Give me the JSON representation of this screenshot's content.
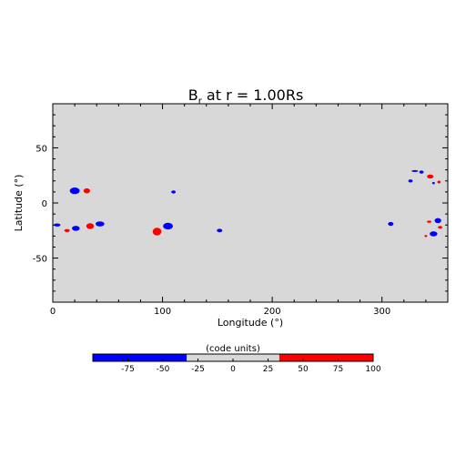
{
  "chart_data": {
    "type": "heatmap",
    "title_main": "B",
    "title_sub": "r",
    "title_rest": " at r = 1.00Rs",
    "xlabel": "Longitude (°)",
    "ylabel": "Latitude (°)",
    "xlim": [
      0,
      360
    ],
    "ylim": [
      -90,
      90
    ],
    "xticks": [
      0,
      100,
      200,
      300
    ],
    "yticks": [
      -50,
      0,
      50
    ],
    "background_color": "#d8d8d8",
    "spots": [
      {
        "lon": 4,
        "lat": -20,
        "rlon": 3,
        "rlat": 1.4,
        "sign": "neg"
      },
      {
        "lon": 13,
        "lat": -25,
        "rlon": 2.5,
        "rlat": 1.4,
        "sign": "pos"
      },
      {
        "lon": 20,
        "lat": 11,
        "rlon": 4.5,
        "rlat": 3,
        "sign": "neg"
      },
      {
        "lon": 31,
        "lat": 11,
        "rlon": 3,
        "rlat": 2.3,
        "sign": "pos"
      },
      {
        "lon": 21,
        "lat": -23,
        "rlon": 3.5,
        "rlat": 2.3,
        "sign": "neg"
      },
      {
        "lon": 34,
        "lat": -21,
        "rlon": 3.5,
        "rlat": 2.6,
        "sign": "pos"
      },
      {
        "lon": 43,
        "lat": -19,
        "rlon": 4,
        "rlat": 2.3,
        "sign": "neg"
      },
      {
        "lon": 95,
        "lat": -26,
        "rlon": 4,
        "rlat": 3.5,
        "sign": "pos"
      },
      {
        "lon": 105,
        "lat": -21,
        "rlon": 4.5,
        "rlat": 3,
        "sign": "neg"
      },
      {
        "lon": 110,
        "lat": 10,
        "rlon": 2,
        "rlat": 1.4,
        "sign": "neg"
      },
      {
        "lon": 152,
        "lat": -25,
        "rlon": 2.5,
        "rlat": 1.6,
        "sign": "neg"
      },
      {
        "lon": 308,
        "lat": -19,
        "rlon": 2.5,
        "rlat": 1.8,
        "sign": "neg"
      },
      {
        "lon": 326,
        "lat": 20,
        "rlon": 2,
        "rlat": 1.4,
        "sign": "neg"
      },
      {
        "lon": 330,
        "lat": 29,
        "rlon": 3,
        "rlat": 0.8,
        "sign": "neg"
      },
      {
        "lon": 336,
        "lat": 28,
        "rlon": 2,
        "rlat": 1.4,
        "sign": "neg"
      },
      {
        "lon": 344,
        "lat": 24,
        "rlon": 3,
        "rlat": 1.8,
        "sign": "pos"
      },
      {
        "lon": 347,
        "lat": 18,
        "rlon": 1.2,
        "rlat": 1,
        "sign": "neg"
      },
      {
        "lon": 352,
        "lat": 19,
        "rlon": 1.5,
        "rlat": 1.2,
        "sign": "pos"
      },
      {
        "lon": 343,
        "lat": -17,
        "rlon": 2,
        "rlat": 1,
        "sign": "pos"
      },
      {
        "lon": 351,
        "lat": -16,
        "rlon": 3,
        "rlat": 2.3,
        "sign": "neg"
      },
      {
        "lon": 353,
        "lat": -22,
        "rlon": 2,
        "rlat": 1.2,
        "sign": "pos"
      },
      {
        "lon": 347,
        "lat": -28,
        "rlon": 3.5,
        "rlat": 2.3,
        "sign": "neg"
      },
      {
        "lon": 340,
        "lat": -30,
        "rlon": 1.2,
        "rlat": 1,
        "sign": "pos"
      }
    ],
    "colorbar": {
      "label": "(code units)",
      "range": [
        -100,
        100
      ],
      "ticks": [
        "-75",
        "-50",
        "-25",
        "0",
        "25",
        "50",
        "75",
        "100"
      ],
      "tick_values": [
        -75,
        -50,
        -25,
        0,
        25,
        50,
        75,
        100
      ],
      "segments": [
        {
          "from": -100,
          "to": -33,
          "color": "#0000ff"
        },
        {
          "from": -33,
          "to": 33,
          "color": "#d8d8d8"
        },
        {
          "from": 33,
          "to": 100,
          "color": "#ff0000"
        }
      ]
    },
    "colors": {
      "positive": "#ff0000",
      "negative": "#0000ff"
    }
  }
}
